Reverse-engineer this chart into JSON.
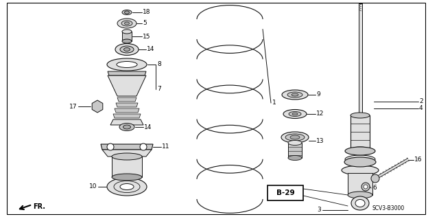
{
  "bg_color": "#ffffff",
  "border_color": "#000000",
  "diagram_ref": "SCV3-B3000",
  "page_ref": "B-29",
  "lc": "#111111",
  "fc_light": "#e0e0e0",
  "fc_mid": "#c8c8c8",
  "fc_dark": "#aaaaaa"
}
